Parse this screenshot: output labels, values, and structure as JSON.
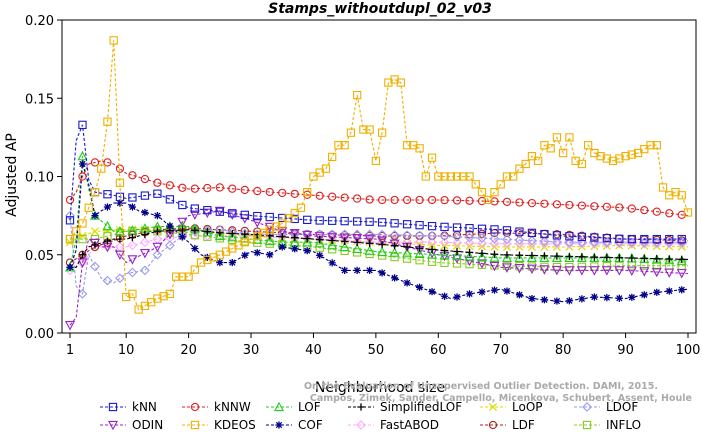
{
  "chart_data": {
    "type": "line",
    "title": "Stamps_withoutdupl_02_v03",
    "xlabel": "Neighborhood size",
    "ylabel": "Adjusted AP",
    "xlim": [
      1,
      100
    ],
    "ylim": [
      0.0,
      0.2
    ],
    "xticks": [
      1,
      10,
      20,
      30,
      40,
      50,
      60,
      70,
      80,
      90,
      100
    ],
    "yticks": [
      0.0,
      0.05,
      0.1,
      0.15,
      0.2
    ],
    "ytick_labels": [
      "0.00",
      "0.05",
      "0.10",
      "0.15",
      "0.20"
    ],
    "watermark": [
      "Campos, Zimek, Sander, Campello, Micenkova, Schubert, Assent, Houle",
      "On the Evaluation of Unsupervised Outlier Detection. DAMI, 2015."
    ],
    "series": [
      {
        "name": "kNN",
        "color": "#1a1acc",
        "marker": "square",
        "anchors": [
          [
            1,
            0.072
          ],
          [
            2,
            0.123
          ],
          [
            3,
            0.133
          ],
          [
            4,
            0.098
          ],
          [
            5,
            0.09
          ],
          [
            8,
            0.088
          ],
          [
            10,
            0.086
          ],
          [
            15,
            0.089
          ],
          [
            20,
            0.08
          ],
          [
            30,
            0.075
          ],
          [
            40,
            0.072
          ],
          [
            50,
            0.071
          ],
          [
            60,
            0.068
          ],
          [
            70,
            0.066
          ],
          [
            80,
            0.062
          ],
          [
            90,
            0.06
          ],
          [
            100,
            0.06
          ]
        ]
      },
      {
        "name": "kNNW",
        "color": "#dd2222",
        "marker": "circle",
        "anchors": [
          [
            1,
            0.085
          ],
          [
            2,
            0.09
          ],
          [
            3,
            0.1
          ],
          [
            4,
            0.108
          ],
          [
            6,
            0.11
          ],
          [
            8,
            0.108
          ],
          [
            10,
            0.102
          ],
          [
            15,
            0.096
          ],
          [
            20,
            0.092
          ],
          [
            25,
            0.093
          ],
          [
            30,
            0.091
          ],
          [
            40,
            0.088
          ],
          [
            50,
            0.085
          ],
          [
            60,
            0.085
          ],
          [
            70,
            0.084
          ],
          [
            80,
            0.082
          ],
          [
            90,
            0.08
          ],
          [
            100,
            0.075
          ]
        ]
      },
      {
        "name": "LOF",
        "color": "#22cc22",
        "marker": "triangle",
        "anchors": [
          [
            1,
            0.042
          ],
          [
            2,
            0.06
          ],
          [
            3,
            0.113
          ],
          [
            4,
            0.092
          ],
          [
            5,
            0.075
          ],
          [
            8,
            0.065
          ],
          [
            10,
            0.065
          ],
          [
            15,
            0.068
          ],
          [
            20,
            0.068
          ],
          [
            25,
            0.062
          ],
          [
            30,
            0.06
          ],
          [
            35,
            0.058
          ],
          [
            40,
            0.058
          ],
          [
            50,
            0.052
          ],
          [
            60,
            0.05
          ],
          [
            70,
            0.048
          ],
          [
            80,
            0.048
          ],
          [
            90,
            0.048
          ],
          [
            100,
            0.046
          ]
        ]
      },
      {
        "name": "SimplifiedLOF",
        "color": "#000000",
        "marker": "plus",
        "anchors": [
          [
            1,
            0.042
          ],
          [
            2,
            0.042
          ],
          [
            3,
            0.05
          ],
          [
            4,
            0.055
          ],
          [
            8,
            0.06
          ],
          [
            10,
            0.06
          ],
          [
            15,
            0.065
          ],
          [
            20,
            0.066
          ],
          [
            25,
            0.064
          ],
          [
            30,
            0.063
          ],
          [
            40,
            0.06
          ],
          [
            50,
            0.057
          ],
          [
            60,
            0.053
          ],
          [
            70,
            0.05
          ],
          [
            80,
            0.049
          ],
          [
            90,
            0.048
          ],
          [
            100,
            0.047
          ]
        ]
      },
      {
        "name": "LoOP",
        "color": "#dddd00",
        "marker": "x",
        "anchors": [
          [
            1,
            0.058
          ],
          [
            3,
            0.062
          ],
          [
            5,
            0.065
          ],
          [
            10,
            0.066
          ],
          [
            20,
            0.066
          ],
          [
            30,
            0.062
          ],
          [
            40,
            0.06
          ],
          [
            50,
            0.058
          ],
          [
            60,
            0.056
          ],
          [
            70,
            0.055
          ],
          [
            80,
            0.055
          ],
          [
            90,
            0.056
          ],
          [
            100,
            0.055
          ]
        ]
      },
      {
        "name": "LDOF",
        "color": "#9999ee",
        "marker": "diamond",
        "anchors": [
          [
            1,
            0.075
          ],
          [
            2,
            0.03
          ],
          [
            3,
            0.025
          ],
          [
            4,
            0.05
          ],
          [
            6,
            0.035
          ],
          [
            8,
            0.032
          ],
          [
            10,
            0.038
          ],
          [
            13,
            0.04
          ],
          [
            15,
            0.05
          ],
          [
            20,
            0.065
          ],
          [
            25,
            0.066
          ],
          [
            30,
            0.063
          ],
          [
            40,
            0.063
          ],
          [
            50,
            0.063
          ],
          [
            60,
            0.062
          ],
          [
            70,
            0.06
          ],
          [
            80,
            0.058
          ],
          [
            90,
            0.058
          ],
          [
            100,
            0.058
          ]
        ]
      },
      {
        "name": "ODIN",
        "color": "#9922cc",
        "marker": "triangledown",
        "anchors": [
          [
            1,
            0.005
          ],
          [
            2,
            0.01
          ],
          [
            3,
            0.045
          ],
          [
            4,
            0.06
          ],
          [
            6,
            0.055
          ],
          [
            8,
            0.055
          ],
          [
            10,
            0.045
          ],
          [
            15,
            0.055
          ],
          [
            20,
            0.075
          ],
          [
            25,
            0.078
          ],
          [
            30,
            0.072
          ],
          [
            35,
            0.065
          ],
          [
            40,
            0.062
          ],
          [
            50,
            0.06
          ],
          [
            60,
            0.05
          ],
          [
            70,
            0.042
          ],
          [
            80,
            0.04
          ],
          [
            90,
            0.04
          ],
          [
            100,
            0.038
          ]
        ]
      },
      {
        "name": "KDEOS",
        "color": "#f0b000",
        "marker": "square",
        "anchors": [
          [
            1,
            0.06
          ],
          [
            3,
            0.07
          ],
          [
            5,
            0.09
          ],
          [
            6,
            0.105
          ],
          [
            7,
            0.135
          ],
          [
            8,
            0.187
          ],
          [
            9,
            0.096
          ],
          [
            10,
            0.023
          ],
          [
            11,
            0.025
          ],
          [
            12,
            0.015
          ],
          [
            15,
            0.022
          ],
          [
            17,
            0.025
          ],
          [
            18,
            0.036
          ],
          [
            20,
            0.036
          ],
          [
            22,
            0.045
          ],
          [
            25,
            0.05
          ],
          [
            30,
            0.06
          ],
          [
            35,
            0.07
          ],
          [
            38,
            0.08
          ],
          [
            40,
            0.1
          ],
          [
            42,
            0.105
          ],
          [
            44,
            0.12
          ],
          [
            45,
            0.12
          ],
          [
            46,
            0.128
          ],
          [
            47,
            0.152
          ],
          [
            48,
            0.13
          ],
          [
            49,
            0.13
          ],
          [
            50,
            0.11
          ],
          [
            51,
            0.128
          ],
          [
            52,
            0.16
          ],
          [
            53,
            0.162
          ],
          [
            54,
            0.16
          ],
          [
            55,
            0.12
          ],
          [
            56,
            0.12
          ],
          [
            57,
            0.118
          ],
          [
            58,
            0.1
          ],
          [
            59,
            0.112
          ],
          [
            60,
            0.1
          ],
          [
            62,
            0.1
          ],
          [
            65,
            0.1
          ],
          [
            68,
            0.085
          ],
          [
            70,
            0.095
          ],
          [
            71,
            0.1
          ],
          [
            72,
            0.1
          ],
          [
            73,
            0.105
          ],
          [
            74,
            0.108
          ],
          [
            75,
            0.113
          ],
          [
            76,
            0.11
          ],
          [
            77,
            0.12
          ],
          [
            78,
            0.118
          ],
          [
            79,
            0.125
          ],
          [
            80,
            0.115
          ],
          [
            81,
            0.125
          ],
          [
            82,
            0.11
          ],
          [
            83,
            0.108
          ],
          [
            84,
            0.12
          ],
          [
            85,
            0.115
          ],
          [
            86,
            0.113
          ],
          [
            88,
            0.11
          ],
          [
            90,
            0.113
          ],
          [
            92,
            0.115
          ],
          [
            94,
            0.12
          ],
          [
            95,
            0.12
          ],
          [
            96,
            0.093
          ],
          [
            97,
            0.088
          ],
          [
            98,
            0.09
          ],
          [
            99,
            0.088
          ],
          [
            100,
            0.077
          ]
        ]
      },
      {
        "name": "COF",
        "color": "#000088",
        "marker": "star",
        "anchors": [
          [
            1,
            0.042
          ],
          [
            2,
            0.053
          ],
          [
            3,
            0.108
          ],
          [
            4,
            0.095
          ],
          [
            5,
            0.075
          ],
          [
            6,
            0.078
          ],
          [
            8,
            0.083
          ],
          [
            10,
            0.083
          ],
          [
            12,
            0.078
          ],
          [
            15,
            0.075
          ],
          [
            18,
            0.065
          ],
          [
            20,
            0.058
          ],
          [
            22,
            0.05
          ],
          [
            25,
            0.045
          ],
          [
            27,
            0.045
          ],
          [
            30,
            0.052
          ],
          [
            33,
            0.05
          ],
          [
            35,
            0.055
          ],
          [
            40,
            0.052
          ],
          [
            45,
            0.04
          ],
          [
            50,
            0.04
          ],
          [
            55,
            0.032
          ],
          [
            60,
            0.025
          ],
          [
            62,
            0.022
          ],
          [
            65,
            0.025
          ],
          [
            70,
            0.028
          ],
          [
            75,
            0.022
          ],
          [
            80,
            0.02
          ],
          [
            85,
            0.023
          ],
          [
            90,
            0.022
          ],
          [
            95,
            0.026
          ],
          [
            100,
            0.028
          ]
        ]
      },
      {
        "name": "FastABOD",
        "color": "#ffaaff",
        "marker": "diamond",
        "anchors": [
          [
            1,
            0.04
          ],
          [
            3,
            0.045
          ],
          [
            5,
            0.055
          ],
          [
            10,
            0.055
          ],
          [
            15,
            0.06
          ],
          [
            20,
            0.062
          ],
          [
            30,
            0.062
          ],
          [
            40,
            0.06
          ],
          [
            50,
            0.058
          ],
          [
            60,
            0.058
          ],
          [
            70,
            0.057
          ],
          [
            80,
            0.057
          ],
          [
            90,
            0.057
          ],
          [
            100,
            0.057
          ]
        ]
      },
      {
        "name": "LDF",
        "color": "#aa2222",
        "marker": "circle",
        "anchors": [
          [
            1,
            0.045
          ],
          [
            3,
            0.05
          ],
          [
            5,
            0.055
          ],
          [
            10,
            0.062
          ],
          [
            15,
            0.066
          ],
          [
            20,
            0.067
          ],
          [
            30,
            0.065
          ],
          [
            40,
            0.063
          ],
          [
            50,
            0.062
          ],
          [
            60,
            0.062
          ],
          [
            70,
            0.064
          ],
          [
            80,
            0.063
          ],
          [
            90,
            0.06
          ],
          [
            100,
            0.059
          ]
        ]
      },
      {
        "name": "INFLO",
        "color": "#88cc22",
        "marker": "square",
        "anchors": [
          [
            1,
            0.06
          ],
          [
            3,
            0.06
          ],
          [
            5,
            0.06
          ],
          [
            10,
            0.065
          ],
          [
            15,
            0.065
          ],
          [
            20,
            0.063
          ],
          [
            30,
            0.058
          ],
          [
            40,
            0.055
          ],
          [
            50,
            0.05
          ],
          [
            60,
            0.045
          ],
          [
            70,
            0.043
          ],
          [
            80,
            0.042
          ],
          [
            90,
            0.043
          ],
          [
            100,
            0.043
          ]
        ]
      }
    ]
  }
}
